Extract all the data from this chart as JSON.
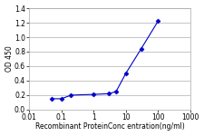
{
  "x": [
    0.05,
    0.1,
    0.2,
    1,
    3,
    5,
    10,
    30,
    100
  ],
  "y": [
    0.15,
    0.15,
    0.2,
    0.21,
    0.22,
    0.25,
    0.5,
    0.84,
    1.22
  ],
  "line_color": "#0000CC",
  "marker": "D",
  "marker_size": 2.5,
  "marker_linewidth": 0.5,
  "line_width": 0.8,
  "xlabel": "Recombinant ProteinConc entration(ng/ml)",
  "ylabel": "OD 450",
  "xlim": [
    0.01,
    1000
  ],
  "ylim": [
    0,
    1.4
  ],
  "yticks": [
    0,
    0.2,
    0.4,
    0.6,
    0.8,
    1.0,
    1.2,
    1.4
  ],
  "xtick_values": [
    0.01,
    0.1,
    1,
    10,
    100,
    1000
  ],
  "xtick_labels": [
    "0.01",
    "0.1",
    "1",
    "10",
    "100",
    "1000"
  ],
  "axis_fontsize": 5.5,
  "tick_fontsize": 5.5,
  "background_color": "#ffffff",
  "plot_bg_color": "#ffffff",
  "grid_color": "#bbbbbb"
}
